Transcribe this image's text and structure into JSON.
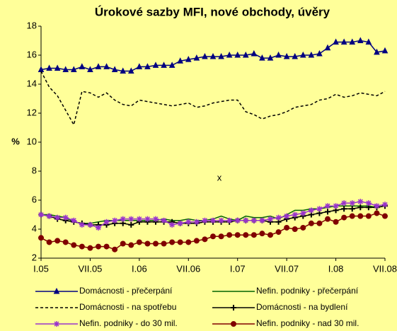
{
  "chart_data": {
    "type": "line",
    "title": "Úrokové sazby MFI, nové obchody, úvěry",
    "y_label": "%",
    "annotation": "x",
    "categories": [
      "I.05",
      null,
      null,
      null,
      null,
      null,
      "VII.05",
      null,
      null,
      null,
      null,
      null,
      "I.06",
      null,
      null,
      null,
      null,
      null,
      "VII.06",
      null,
      null,
      null,
      null,
      null,
      "I.07",
      null,
      null,
      null,
      null,
      null,
      "VII.07",
      null,
      null,
      null,
      null,
      null,
      "I.08",
      null,
      null,
      null,
      null,
      null,
      "VII.08"
    ],
    "ylim": [
      2,
      18
    ],
    "yticks": [
      2,
      4,
      6,
      8,
      10,
      12,
      14,
      16,
      18
    ],
    "grid": false,
    "legend": "bottom",
    "series": [
      {
        "name": "Domácnosti - přečerpání",
        "color": "#000080",
        "marker": "triangle",
        "line_style": "solid",
        "values": [
          15.0,
          15.1,
          15.1,
          15.0,
          15.0,
          15.2,
          15.0,
          15.2,
          15.2,
          15.0,
          14.9,
          14.9,
          15.2,
          15.2,
          15.3,
          15.3,
          15.3,
          15.6,
          15.7,
          15.8,
          15.9,
          15.9,
          15.9,
          16.0,
          16.0,
          16.0,
          16.1,
          15.8,
          15.8,
          16.0,
          15.9,
          15.9,
          16.0,
          16.0,
          16.1,
          16.5,
          16.9,
          16.9,
          16.9,
          17.0,
          16.9,
          16.2,
          16.3
        ]
      },
      {
        "name": "Nefin. podniky - přečerpání",
        "color": "#006400",
        "marker": "none",
        "line_style": "solid",
        "values": [
          5.0,
          5.0,
          4.9,
          4.8,
          4.5,
          4.4,
          4.4,
          4.5,
          4.6,
          4.6,
          4.6,
          4.6,
          4.6,
          4.6,
          4.6,
          4.7,
          4.6,
          4.6,
          4.7,
          4.6,
          4.6,
          4.7,
          4.9,
          4.7,
          4.6,
          4.9,
          4.8,
          4.8,
          4.9,
          4.7,
          5.0,
          5.3,
          5.3,
          5.4,
          5.4,
          5.5,
          5.6,
          5.6,
          5.6,
          5.6,
          5.6,
          5.5,
          5.6
        ]
      },
      {
        "name": "Domácnosti - na spotřebu",
        "color": "#000000",
        "marker": "none",
        "line_style": "dashed",
        "values": [
          14.9,
          13.8,
          13.2,
          12.2,
          11.2,
          13.5,
          13.4,
          13.1,
          13.4,
          12.9,
          12.6,
          12.5,
          12.9,
          12.8,
          12.7,
          12.6,
          12.5,
          12.6,
          12.7,
          12.4,
          12.5,
          12.7,
          12.8,
          12.9,
          12.9,
          12.1,
          11.9,
          11.6,
          11.8,
          11.9,
          12.1,
          12.4,
          12.5,
          12.6,
          12.9,
          13.0,
          13.3,
          13.1,
          13.2,
          13.4,
          13.3,
          13.2,
          13.5
        ]
      },
      {
        "name": "Domácnosti - na bydlení",
        "color": "#000000",
        "marker": "plus",
        "line_style": "solid",
        "values": [
          5.0,
          4.9,
          4.7,
          4.6,
          4.5,
          4.4,
          4.3,
          4.3,
          4.3,
          4.4,
          4.4,
          4.3,
          4.5,
          4.5,
          4.5,
          4.5,
          4.5,
          4.4,
          4.4,
          4.4,
          4.5,
          4.5,
          4.5,
          4.5,
          4.6,
          4.6,
          4.6,
          4.6,
          4.5,
          4.5,
          4.7,
          4.8,
          4.9,
          5.0,
          5.1,
          5.2,
          5.3,
          5.4,
          5.4,
          5.5,
          5.5,
          5.5,
          5.6
        ]
      },
      {
        "name": "Nefin. podniky - do 30 mil.",
        "color": "#9933CC",
        "marker": "asterisk",
        "line_style": "solid",
        "values": [
          5.0,
          4.9,
          4.8,
          4.8,
          4.6,
          4.3,
          4.3,
          4.1,
          4.5,
          4.6,
          4.7,
          4.7,
          4.7,
          4.7,
          4.7,
          4.6,
          4.3,
          4.4,
          4.5,
          4.5,
          4.6,
          4.6,
          4.6,
          4.6,
          4.6,
          4.6,
          4.6,
          4.6,
          4.7,
          4.8,
          4.9,
          5.0,
          5.1,
          5.3,
          5.4,
          5.6,
          5.6,
          5.8,
          5.8,
          5.9,
          5.8,
          5.6,
          5.7
        ]
      },
      {
        "name": "Nefin. podniky - nad 30 mil.",
        "color": "#800000",
        "marker": "circle",
        "line_style": "solid",
        "values": [
          3.4,
          3.1,
          3.2,
          3.1,
          2.9,
          2.8,
          2.7,
          2.8,
          2.8,
          2.6,
          3.0,
          2.9,
          3.1,
          3.0,
          3.0,
          3.0,
          3.1,
          3.1,
          3.1,
          3.2,
          3.3,
          3.5,
          3.5,
          3.6,
          3.6,
          3.6,
          3.6,
          3.7,
          3.6,
          3.8,
          4.1,
          4.0,
          4.1,
          4.4,
          4.4,
          4.7,
          4.5,
          4.8,
          4.9,
          4.9,
          4.9,
          5.1,
          4.9
        ]
      }
    ]
  }
}
